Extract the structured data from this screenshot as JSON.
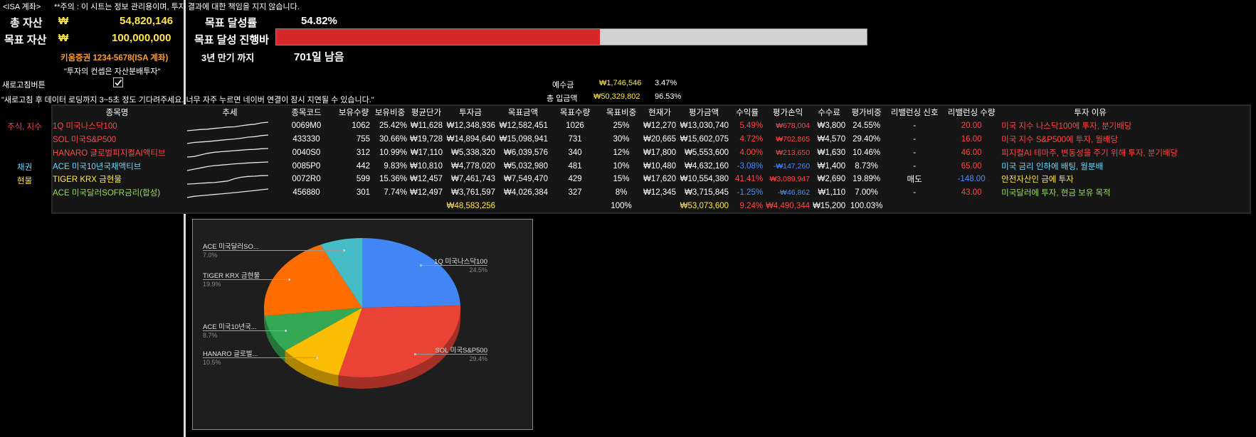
{
  "header": {
    "account_tag": "<ISA 계좌>",
    "notice": "**주의 : 이 시트는 정보 관리용이며, 투자 결과에 대한 책임을 지지 않습니다.",
    "total_label": "총 자산",
    "won": "₩",
    "total_value": "54,820,146",
    "goal_label": "목표 자산",
    "goal_value": "100,000,000",
    "rate_label": "목표 달성률",
    "rate_value": "54.82%",
    "progress_label": "목표 달성 진행바",
    "progress_fraction": 0.5482,
    "broker": "키움증권 1234-5678(ISA 계좌)",
    "maturity_label": "3년 만기 까지",
    "maturity_value": "701일 남음",
    "concept": "\"투자의 컨셉은 자산분배투자\"",
    "refresh_label": "새로고침버튼",
    "refresh_note": "\"새로고침 후 데이터 로딩까지 3~5초 정도 기다려주세요. 너무 자주 누르면 네이버 연결이 잠시 지연될 수 있습니다.\"",
    "deposit_label": "예수금",
    "deposit_value": "₩1,746,546",
    "deposit_pct": "3.47%",
    "paid_label": "총 입금액",
    "paid_value": "₩50,329,802",
    "paid_pct": "96.53%"
  },
  "colors": {
    "red": "#ff4444",
    "yellow": "#ffe74a",
    "blue": "#4a8cff",
    "orange": "#ff9c2e",
    "cyan": "#6ad8ff",
    "green": "#9bd95b",
    "light_red": "#ff6b6b"
  },
  "categories": [
    {
      "label": "주식, 지수",
      "color": "#ff4444"
    },
    {
      "label": "채권",
      "color": "#6ad8ff"
    },
    {
      "label": "현물",
      "color": "#ffe74a"
    }
  ],
  "table": {
    "headers": [
      "종목명",
      "추세",
      "종목코드",
      "보유수량",
      "보유비중",
      "평균단가",
      "투자금",
      "목표금액",
      "목표수량",
      "목표비중",
      "현재가",
      "평가금액",
      "수익률",
      "평가손익",
      "수수료",
      "평가비중",
      "리밸런싱 신호",
      "리밸런싱 수량",
      "투자 이유"
    ],
    "rows": [
      {
        "name": "1Q 미국나스닥100",
        "name_color": "#ff4444",
        "code": "0069M0",
        "qty": "1062",
        "weight": "25.42%",
        "avg": "₩11,628",
        "invest": "₩12,348,936",
        "target_amt": "₩12,582,451",
        "target_qty": "1026",
        "target_w": "25%",
        "price": "₩12,270",
        "eval": "₩13,030,740",
        "ret": "5.49%",
        "ret_color": "#ff4444",
        "pl": "₩678,004",
        "pl_color": "#ff4444",
        "fee": "₩3,800",
        "eval_w": "24.55%",
        "signal": "-",
        "reb_qty": "20.00",
        "reb_color": "#ff4444",
        "reason": "미국 지수 나스닥100에 투자, 분기배당",
        "reason_color": "#ff4444",
        "trend": [
          6,
          6.5,
          7,
          7.2,
          7.8,
          8.2,
          8.8,
          9,
          9.8,
          10.5,
          11,
          12,
          12.5
        ]
      },
      {
        "name": "SOL 미국S&P500",
        "name_color": "#ff4444",
        "code": "433330",
        "qty": "755",
        "weight": "30.66%",
        "avg": "₩19,728",
        "invest": "₩14,894,640",
        "target_amt": "₩15,098,941",
        "target_qty": "731",
        "target_w": "30%",
        "price": "₩20,665",
        "eval": "₩15,602,075",
        "ret": "4.72%",
        "ret_color": "#ff4444",
        "pl": "₩702,865",
        "pl_color": "#ff4444",
        "fee": "₩4,570",
        "eval_w": "29.40%",
        "signal": "-",
        "reb_qty": "16.00",
        "reb_color": "#ff4444",
        "reason": "미국 지수 S&P500에 투자, 월배당",
        "reason_color": "#ff4444",
        "trend": [
          6,
          6.8,
          7.2,
          7.5,
          8,
          8.5,
          9,
          9.4,
          10,
          10.8,
          11.2,
          12,
          12.4
        ]
      },
      {
        "name": "HANARO 글로벌피지컬AI액티브",
        "name_color": "#ff4444",
        "code": "0040S0",
        "qty": "312",
        "weight": "10.99%",
        "avg": "₩17,110",
        "invest": "₩5,338,320",
        "target_amt": "₩6,039,576",
        "target_qty": "340",
        "target_w": "12%",
        "price": "₩17,800",
        "eval": "₩5,553,600",
        "ret": "4.00%",
        "ret_color": "#ff4444",
        "pl": "₩213,650",
        "pl_color": "#ff4444",
        "fee": "₩1,630",
        "eval_w": "10.46%",
        "signal": "-",
        "reb_qty": "46.00",
        "reb_color": "#ff4444",
        "reason": "피지컬AI 테마주, 변동성을 주기 위해 투자, 분기배당",
        "reason_color": "#ff4444",
        "trend": [
          4,
          4.5,
          6,
          7.5,
          8.5,
          9,
          9.5,
          10,
          10.5,
          11,
          11.2,
          11.8,
          12
        ]
      },
      {
        "name": "ACE 미국10년국채액티브",
        "name_color": "#6ad8ff",
        "code": "0085P0",
        "qty": "442",
        "weight": "9.83%",
        "avg": "₩10,810",
        "invest": "₩4,778,020",
        "target_amt": "₩5,032,980",
        "target_qty": "481",
        "target_w": "10%",
        "price": "₩10,480",
        "eval": "₩4,632,160",
        "ret": "-3.08%",
        "ret_color": "#4a8cff",
        "pl": "-₩147,260",
        "pl_color": "#4a8cff",
        "fee": "₩1,400",
        "eval_w": "8.73%",
        "signal": "-",
        "reb_qty": "65.00",
        "reb_color": "#ff4444",
        "reason": "미국 금리 인하에 배팅, 월분배",
        "reason_color": "#6ad8ff",
        "trend": [
          3,
          4.5,
          6,
          7.5,
          8.5,
          9.2,
          9.8,
          10.5,
          11,
          11.6,
          12,
          12.3,
          12.6
        ]
      },
      {
        "name": "TIGER KRX 금현물",
        "name_color": "#ffe74a",
        "code": "0072R0",
        "qty": "599",
        "weight": "15.36%",
        "avg": "₩12,457",
        "invest": "₩7,461,743",
        "target_amt": "₩7,549,470",
        "target_qty": "429",
        "target_w": "15%",
        "price": "₩17,620",
        "eval": "₩10,554,380",
        "ret": "41.41%",
        "ret_color": "#ff4444",
        "pl": "₩3,089,947",
        "pl_color": "#ff4444",
        "fee": "₩2,690",
        "eval_w": "19.89%",
        "signal": "매도",
        "reb_qty": "-148.00",
        "reb_color": "#4a8cff",
        "reason": "안전자산인 금에 투자",
        "reason_color": "#ffe74a",
        "trend": [
          3,
          3.2,
          3.5,
          3.8,
          4,
          4.5,
          5,
          6.5,
          7.5,
          8,
          8.2,
          8.5,
          8.6
        ]
      },
      {
        "name": "ACE 미국달러SOFR금리(합성)",
        "name_color": "#9bd95b",
        "code": "456880",
        "qty": "301",
        "weight": "7.74%",
        "avg": "₩12,497",
        "invest": "₩3,761,597",
        "target_amt": "₩4,026,384",
        "target_qty": "327",
        "target_w": "8%",
        "price": "₩12,345",
        "eval": "₩3,715,845",
        "ret": "-1.25%",
        "ret_color": "#4a8cff",
        "pl": "-₩46,862",
        "pl_color": "#4a8cff",
        "fee": "₩1,110",
        "eval_w": "7.00%",
        "signal": "-",
        "reb_qty": "43.00",
        "reb_color": "#ff4444",
        "reason": "미국달러에 투자, 현금 보유 목적",
        "reason_color": "#9bd95b",
        "trend": [
          5,
          6,
          6.5,
          7,
          7.5,
          8,
          8.5,
          9,
          9.6,
          10.2,
          10.8,
          11.4,
          12
        ]
      }
    ],
    "totals": {
      "invest": "₩48,583,256",
      "target_w": "100%",
      "eval": "₩53,073,600",
      "ret": "9.24%",
      "pl": "₩4,490,344",
      "fee": "₩15,200",
      "eval_w": "100.03%"
    }
  },
  "chart_data": {
    "type": "pie",
    "title": "",
    "slices": [
      {
        "label": "1Q 미국나스닥100",
        "value": 24.5,
        "pct": "24.5%",
        "color": "#4285f4"
      },
      {
        "label": "SOL 미국S&P500",
        "value": 29.4,
        "pct": "29.4%",
        "color": "#ea4335"
      },
      {
        "label": "HANARO 글로벌...",
        "value": 10.5,
        "pct": "10.5%",
        "color": "#fbbc04"
      },
      {
        "label": "ACE 미국10년국...",
        "value": 8.7,
        "pct": "8.7%",
        "color": "#34a853"
      },
      {
        "label": "TIGER KRX 금현물",
        "value": 19.9,
        "pct": "19.9%",
        "color": "#ff6d01"
      },
      {
        "label": "ACE 미국달러SO...",
        "value": 7.0,
        "pct": "7.0%",
        "color": "#46bdc6"
      }
    ],
    "legend": "labels-around"
  }
}
